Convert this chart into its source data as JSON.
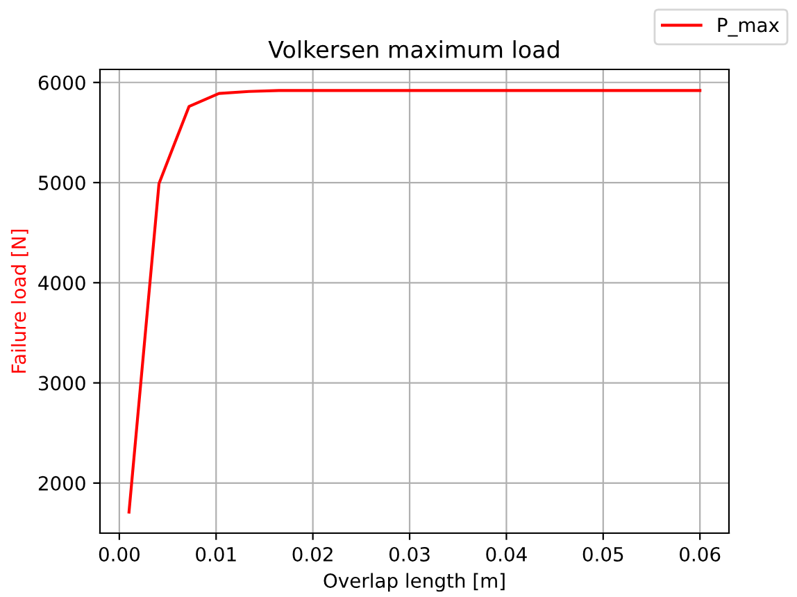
{
  "chart_data": {
    "type": "line",
    "title": "Volkersen maximum load",
    "xlabel": "Overlap length [m]",
    "ylabel": "Failure load [N]",
    "x": [
      0.001,
      0.0041,
      0.0072,
      0.0103,
      0.0134,
      0.0165,
      0.06
    ],
    "series": [
      {
        "name": "P_max",
        "color": "#ff0000",
        "values": [
          1710,
          4990,
          5760,
          5890,
          5910,
          5920,
          5920
        ]
      }
    ],
    "xlim": [
      -0.002,
      0.063
    ],
    "ylim": [
      1500,
      6130
    ],
    "xticks": [
      {
        "value": 0,
        "label": "0.00"
      },
      0.01,
      0.02,
      0.03,
      0.04,
      0.05,
      0.06
    ],
    "yticks": [
      2000,
      3000,
      4000,
      5000,
      6000
    ],
    "grid": true,
    "legend": "top right",
    "marker": "none",
    "line_style": "solid"
  }
}
